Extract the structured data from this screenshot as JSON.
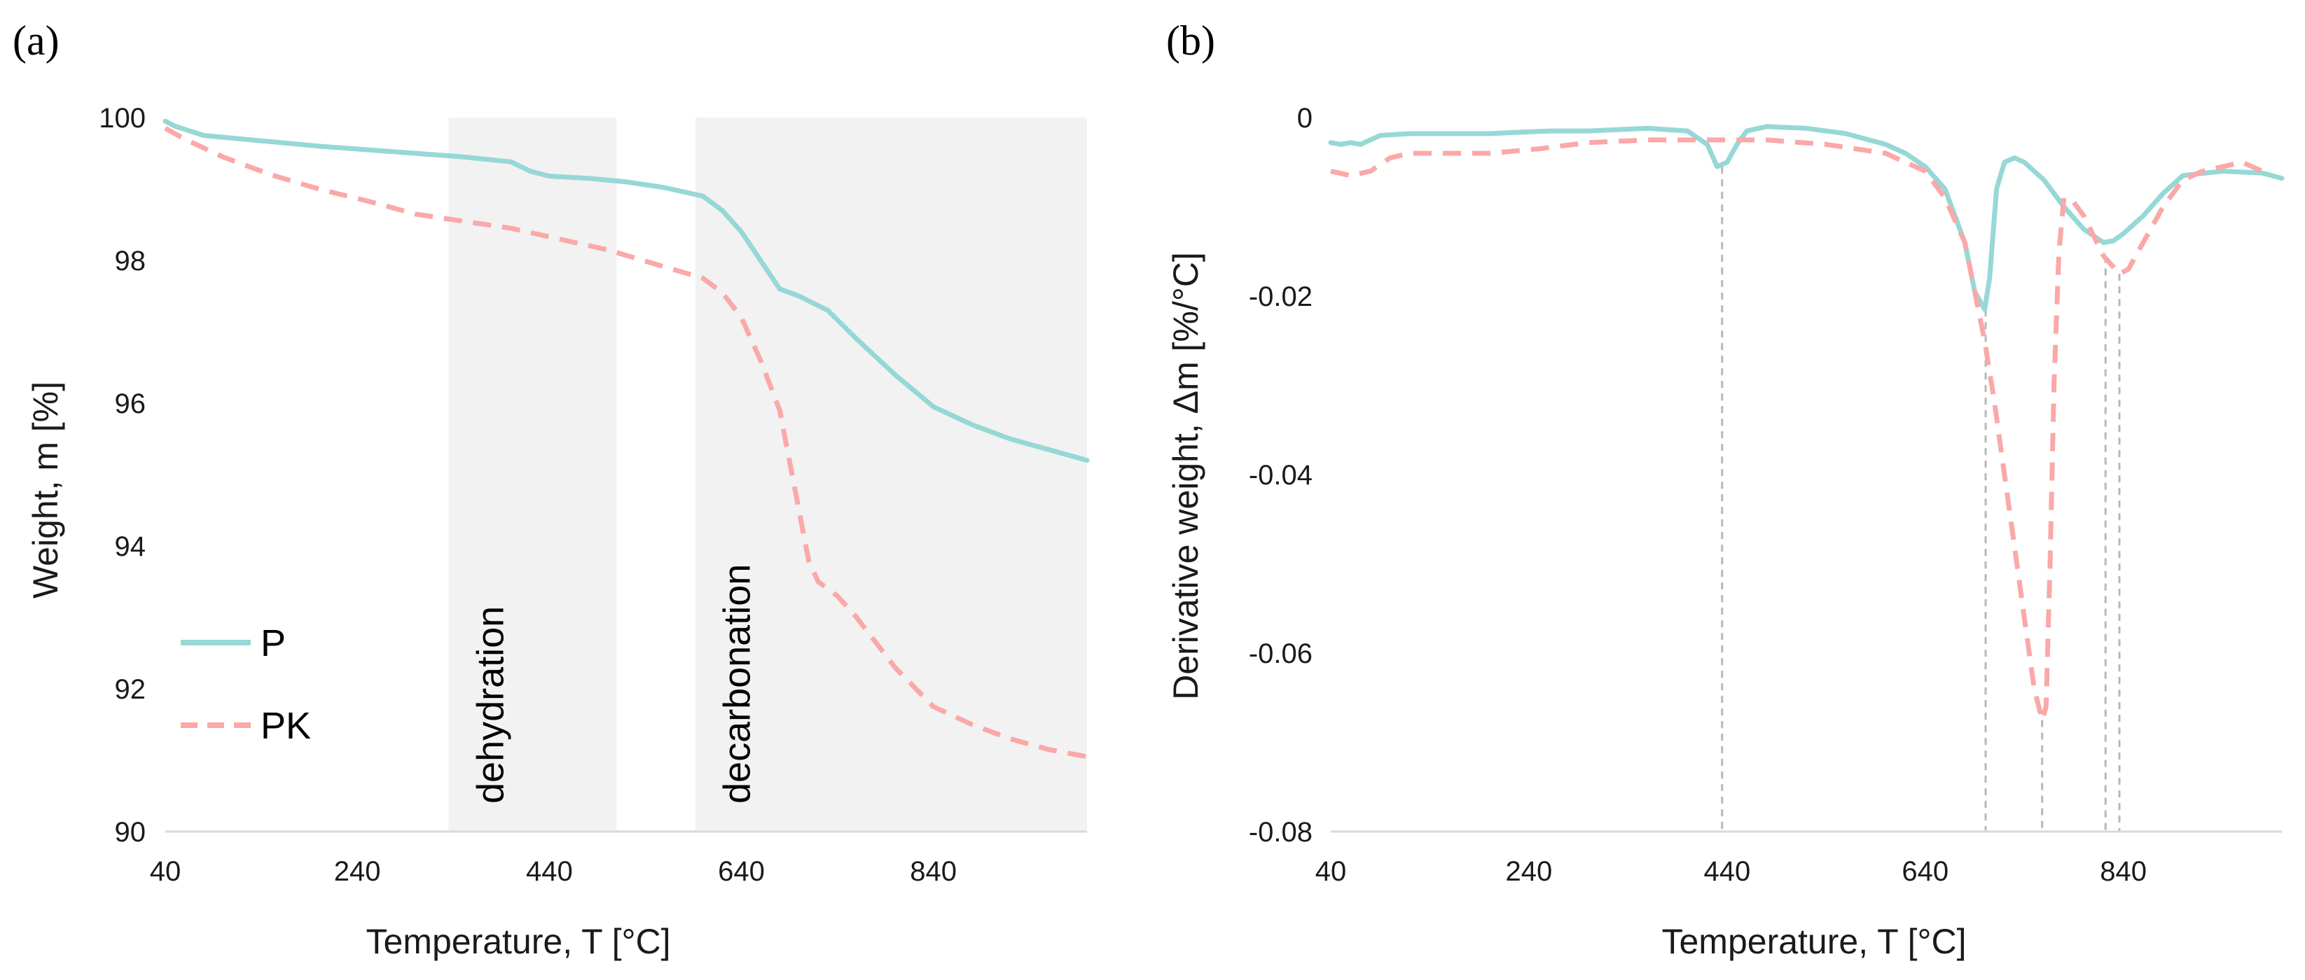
{
  "colors": {
    "P": "#96d8d6",
    "PK": "#fba8a8",
    "region_fill": "#f2f2f2",
    "guide": "#b8b8b8",
    "axis": "#d9d9d9"
  },
  "chart_data": [
    {
      "type": "line",
      "panel": "(a)",
      "xlabel": "Temperature,  T [°C]",
      "ylabel": "Weight, m [%]",
      "xlim": [
        40,
        1000
      ],
      "ylim": [
        90,
        100
      ],
      "xticks": [
        "40",
        "240",
        "440",
        "640",
        "840"
      ],
      "yticks": [
        "90",
        "92",
        "94",
        "96",
        "98",
        "100"
      ],
      "regions": [
        {
          "label": "dehydration",
          "x0": 335,
          "x1": 510
        },
        {
          "label": "decarbonation",
          "x0": 592,
          "x1": 1000
        }
      ],
      "legend": [
        {
          "name": "P",
          "style": "solid"
        },
        {
          "name": "PK",
          "style": "dashed"
        }
      ],
      "series": [
        {
          "name": "P",
          "x": [
            40,
            50,
            80,
            120,
            200,
            300,
            350,
            400,
            420,
            440,
            480,
            520,
            560,
            600,
            620,
            640,
            660,
            680,
            700,
            730,
            760,
            800,
            840,
            880,
            920,
            960,
            1000
          ],
          "y": [
            99.95,
            99.88,
            99.75,
            99.7,
            99.6,
            99.5,
            99.45,
            99.38,
            99.25,
            99.18,
            99.15,
            99.1,
            99.02,
            98.9,
            98.7,
            98.4,
            98.0,
            97.6,
            97.5,
            97.3,
            96.9,
            96.4,
            95.95,
            95.7,
            95.5,
            95.35,
            95.2
          ]
        },
        {
          "name": "PK",
          "x": [
            40,
            60,
            100,
            150,
            200,
            260,
            300,
            350,
            400,
            450,
            500,
            550,
            600,
            620,
            640,
            660,
            680,
            690,
            700,
            710,
            720,
            740,
            760,
            800,
            840,
            880,
            920,
            960,
            1000
          ],
          "y": [
            99.85,
            99.7,
            99.45,
            99.2,
            99.0,
            98.8,
            98.65,
            98.55,
            98.45,
            98.3,
            98.15,
            97.95,
            97.75,
            97.55,
            97.2,
            96.6,
            95.9,
            95.2,
            94.5,
            93.8,
            93.5,
            93.3,
            93.0,
            92.3,
            91.75,
            91.5,
            91.3,
            91.15,
            91.05
          ]
        }
      ]
    },
    {
      "type": "line",
      "panel": "(b)",
      "xlabel": "Temperature, T [°C]",
      "ylabel": "Derivative weight, Δm [%/°C]",
      "xlim": [
        40,
        1000
      ],
      "ylim": [
        -0.08,
        0.0
      ],
      "xticks": [
        "40",
        "240",
        "440",
        "640",
        "840"
      ],
      "yticks": [
        "0",
        "-0.02",
        "-0.04",
        "-0.06",
        "-0.08"
      ],
      "guide_lines": [
        {
          "x": 435,
          "y_from": -0.0055
        },
        {
          "x": 701,
          "y_from": -0.0215
        },
        {
          "x": 758,
          "y_from": -0.0675
        },
        {
          "x": 822,
          "y_from": -0.0155
        },
        {
          "x": 836,
          "y_from": -0.0175
        }
      ],
      "series": [
        {
          "name": "P",
          "x": [
            40,
            50,
            60,
            70,
            90,
            120,
            200,
            260,
            300,
            360,
            400,
            420,
            430,
            440,
            450,
            460,
            480,
            520,
            560,
            600,
            620,
            640,
            660,
            680,
            690,
            700,
            705,
            712,
            720,
            730,
            740,
            760,
            780,
            800,
            820,
            830,
            840,
            860,
            880,
            900,
            940,
            980,
            1000
          ],
          "y": [
            -0.0028,
            -0.003,
            -0.0028,
            -0.003,
            -0.002,
            -0.0018,
            -0.0018,
            -0.0015,
            -0.0015,
            -0.0012,
            -0.0015,
            -0.003,
            -0.0055,
            -0.005,
            -0.003,
            -0.0015,
            -0.001,
            -0.0012,
            -0.0018,
            -0.003,
            -0.004,
            -0.0055,
            -0.008,
            -0.014,
            -0.0195,
            -0.0215,
            -0.018,
            -0.008,
            -0.005,
            -0.0045,
            -0.005,
            -0.007,
            -0.01,
            -0.0125,
            -0.014,
            -0.0138,
            -0.013,
            -0.011,
            -0.0085,
            -0.0065,
            -0.006,
            -0.0062,
            -0.0068
          ]
        },
        {
          "name": "PK",
          "x": [
            40,
            60,
            80,
            100,
            120,
            200,
            250,
            300,
            360,
            420,
            480,
            540,
            600,
            640,
            660,
            680,
            700,
            710,
            720,
            730,
            740,
            750,
            758,
            762,
            766,
            770,
            775,
            780,
            790,
            800,
            820,
            836,
            845,
            860,
            880,
            900,
            920,
            940,
            960,
            980
          ],
          "y": [
            -0.006,
            -0.0065,
            -0.006,
            -0.0045,
            -0.004,
            -0.004,
            -0.0035,
            -0.0028,
            -0.0025,
            -0.0025,
            -0.0025,
            -0.003,
            -0.004,
            -0.006,
            -0.009,
            -0.014,
            -0.025,
            -0.032,
            -0.04,
            -0.048,
            -0.056,
            -0.064,
            -0.0675,
            -0.066,
            -0.05,
            -0.03,
            -0.015,
            -0.009,
            -0.0095,
            -0.011,
            -0.0155,
            -0.0175,
            -0.017,
            -0.014,
            -0.01,
            -0.007,
            -0.006,
            -0.0055,
            -0.005,
            -0.006
          ]
        }
      ]
    }
  ]
}
